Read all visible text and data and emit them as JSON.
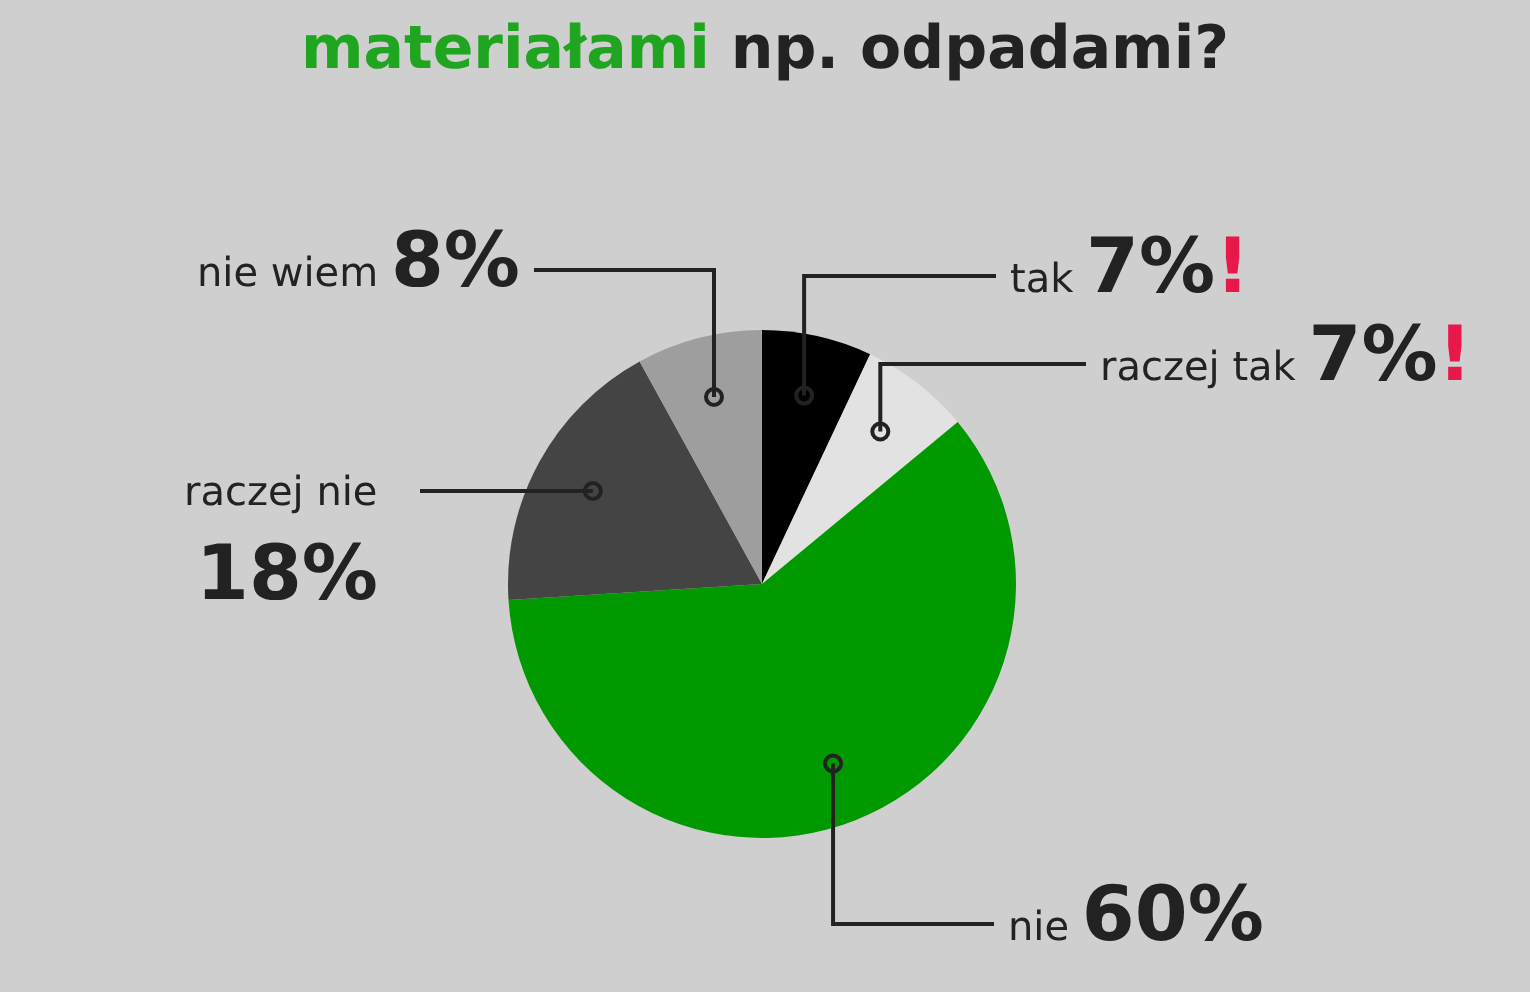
{
  "chart_data": {
    "type": "pie",
    "title": "materiałami np. odpadami?",
    "categories": [
      "tak",
      "raczej tak",
      "nie",
      "raczej nie",
      "nie wiem"
    ],
    "values": [
      7,
      7,
      60,
      18,
      8
    ],
    "colors": [
      "#000000",
      "#e2e2e2",
      "#009a00",
      "#444444",
      "#9e9e9e"
    ],
    "value_labels": [
      "7%!",
      "7%!",
      "60%",
      "18%",
      "8%"
    ]
  }
}
